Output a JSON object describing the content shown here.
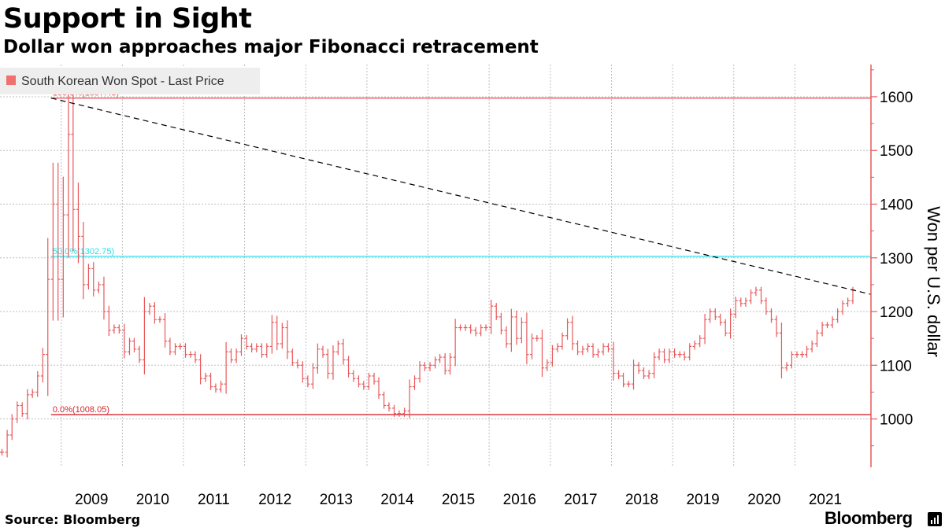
{
  "header": {
    "title": "Support in Sight",
    "subtitle": "Dollar won approaches major Fibonacci retracement"
  },
  "footer": {
    "source": "Source: Bloomberg",
    "brand": "Bloomberg"
  },
  "colors": {
    "series": "#e8585b",
    "fib_100": "#e8585b",
    "fib_50": "#28e2ee",
    "fib_0": "#d9232d",
    "trendline": "#000000",
    "grid": "#bfbfbf"
  },
  "chart_data": {
    "type": "ohlc",
    "title": "Support in Sight",
    "subtitle": "Dollar won approaches major Fibonacci retracement",
    "ylabel": "Won per U.S. dollar",
    "ylim": [
      910,
      1660
    ],
    "yticks": [
      1000,
      1100,
      1200,
      1300,
      1400,
      1500,
      1600
    ],
    "xticks": [
      "2009",
      "2010",
      "2011",
      "2012",
      "2013",
      "2014",
      "2015",
      "2016",
      "2017",
      "2018",
      "2019",
      "2020",
      "2021"
    ],
    "x_range": [
      "2008-01-01",
      "2022-03-31"
    ],
    "grid": true,
    "legend": {
      "position": "top-left",
      "entries": [
        "South Korean Won Spot - Last Price"
      ]
    },
    "fibonacci": [
      {
        "label": "100.0%(1597.45)",
        "value": 1597.45,
        "color": "#e8585b"
      },
      {
        "label": "50.0%(1302.75)",
        "value": 1302.75,
        "color": "#28e2ee"
      },
      {
        "label": "0.0%(1008.05)",
        "value": 1008.05,
        "color": "#d9232d"
      }
    ],
    "trendline": {
      "from": [
        "2008-11-01",
        1597.45
      ],
      "to": [
        "2022-03-31",
        1232
      ]
    },
    "series": [
      {
        "name": "South Korean Won Spot - Last Price",
        "monthly_close": [
          938,
          970,
          1000,
          1025,
          1010,
          1045,
          1050,
          1080,
          1120,
          1260,
          1400,
          1260,
          1380,
          1530,
          1390,
          1340,
          1250,
          1280,
          1240,
          1250,
          1200,
          1165,
          1170,
          1165,
          1125,
          1145,
          1130,
          1110,
          1200,
          1210,
          1185,
          1185,
          1145,
          1125,
          1135,
          1135,
          1120,
          1120,
          1110,
          1075,
          1080,
          1060,
          1055,
          1065,
          1125,
          1110,
          1125,
          1150,
          1135,
          1130,
          1135,
          1120,
          1135,
          1180,
          1140,
          1170,
          1125,
          1105,
          1100,
          1075,
          1065,
          1095,
          1130,
          1120,
          1085,
          1125,
          1140,
          1110,
          1085,
          1075,
          1065,
          1060,
          1080,
          1070,
          1045,
          1025,
          1020,
          1010,
          1010,
          1015,
          1060,
          1075,
          1100,
          1095,
          1100,
          1110,
          1115,
          1090,
          1115,
          1170,
          1170,
          1170,
          1165,
          1160,
          1170,
          1170,
          1210,
          1190,
          1165,
          1140,
          1190,
          1150,
          1180,
          1120,
          1150,
          1150,
          1095,
          1105,
          1130,
          1135,
          1155,
          1180,
          1140,
          1125,
          1130,
          1135,
          1120,
          1125,
          1135,
          1130,
          1085,
          1080,
          1065,
          1065,
          1100,
          1090,
          1080,
          1085,
          1115,
          1125,
          1110,
          1125,
          1120,
          1120,
          1115,
          1135,
          1140,
          1150,
          1185,
          1200,
          1190,
          1180,
          1160,
          1195,
          1220,
          1215,
          1220,
          1235,
          1240,
          1220,
          1200,
          1185,
          1160,
          1095,
          1100,
          1120,
          1120,
          1120,
          1130,
          1140,
          1160,
          1175,
          1175,
          1185,
          1200,
          1215,
          1220,
          1240
        ]
      }
    ]
  }
}
